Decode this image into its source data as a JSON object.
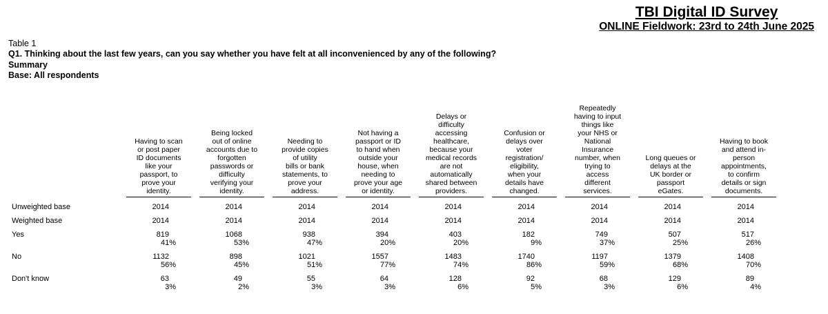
{
  "header": {
    "title": "TBI Digital ID Survey",
    "subtitle": "ONLINE Fieldwork: 23rd to 24th June 2025"
  },
  "meta": {
    "table_label": "Table 1",
    "question": "Q1. Thinking about the last few years, can you say whether you have felt at all inconvenienced by any of the following?",
    "summary": "Summary",
    "base": "Base: All respondents"
  },
  "table": {
    "columns": [
      "Having to scan\nor post paper\nID documents\nlike your\npassport, to\nprove your\nidentity.",
      "Being locked\nout of online\naccounts due to\nforgotten\npasswords or\ndifficulty\nverifying your\nidentity.",
      "Needing to\nprovide copies\nof utility\nbills or bank\nstatements, to\nprove your\naddress.",
      "Not having a\npassport or ID\nto hand when\noutside your\nhouse, when\nneeding to\nprove your age\nor identity.",
      "Delays or\ndifficulty\naccessing\nhealthcare,\nbecause your\nmedical records\nare not\nautomatically\nshared between\nproviders.",
      "Confusion or\ndelays over\nvoter\nregistration/\neligibility,\nwhen your\ndetails have\nchanged.",
      "Repeatedly\nhaving to input\nthings like\nyour NHS or\nNational\nInsurance\nnumber, when\ntrying to\naccess\ndifferent\nservices.",
      "Long queues or\ndelays at the\nUK border or\npassport\neGates.",
      "Having to book\nand attend in-\nperson\nappointments,\nto confirm\ndetails or sign\ndocuments."
    ],
    "rows": [
      {
        "label": "Unweighted base",
        "counts": [
          "2014",
          "2014",
          "2014",
          "2014",
          "2014",
          "2014",
          "2014",
          "2014",
          "2014"
        ],
        "pcts": null
      },
      {
        "label": "Weighted base",
        "counts": [
          "2014",
          "2014",
          "2014",
          "2014",
          "2014",
          "2014",
          "2014",
          "2014",
          "2014"
        ],
        "pcts": null
      },
      {
        "label": "Yes",
        "counts": [
          "819",
          "1068",
          "938",
          "394",
          "403",
          "182",
          "749",
          "507",
          "517"
        ],
        "pcts": [
          "41%",
          "53%",
          "47%",
          "20%",
          "20%",
          "9%",
          "37%",
          "25%",
          "26%"
        ]
      },
      {
        "label": "No",
        "counts": [
          "1132",
          "898",
          "1021",
          "1557",
          "1483",
          "1740",
          "1197",
          "1379",
          "1408"
        ],
        "pcts": [
          "56%",
          "45%",
          "51%",
          "77%",
          "74%",
          "86%",
          "59%",
          "68%",
          "70%"
        ]
      },
      {
        "label": "Don't know",
        "counts": [
          "63",
          "49",
          "55",
          "64",
          "128",
          "92",
          "68",
          "129",
          "89"
        ],
        "pcts": [
          "3%",
          "2%",
          "3%",
          "3%",
          "6%",
          "5%",
          "3%",
          "6%",
          "4%"
        ]
      }
    ]
  }
}
